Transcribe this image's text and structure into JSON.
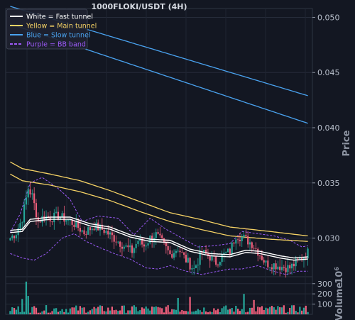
{
  "chart_data": {
    "type": "candlestick",
    "title": "1000FLOKI/USDT (4H)",
    "price_axis": {
      "label": "Price",
      "ylim": [
        0.0265,
        0.0508
      ],
      "ticks": [
        0.03,
        0.035,
        0.04,
        0.045,
        0.05
      ],
      "tick_labels": [
        "0.030",
        "0.035",
        "0.040",
        "0.045",
        "0.050"
      ],
      "grid": true
    },
    "volume_axis": {
      "label": "Volume",
      "unit_label": "10",
      "unit_exponent": "6",
      "ylim": [
        0,
        340
      ],
      "ticks": [
        100,
        200,
        300
      ],
      "tick_labels": [
        "100",
        "200",
        "300"
      ]
    },
    "legend": {
      "placement": "top-left",
      "entries": [
        {
          "label": "White = Fast tunnel",
          "color": "#ffffff",
          "style": "solid"
        },
        {
          "label": "Yellow = Main tunnel",
          "color": "#f6d365",
          "style": "solid"
        },
        {
          "label": "Blue = Slow tunnel",
          "color": "#4aa3f0",
          "style": "solid"
        },
        {
          "label": "Purple = BB band",
          "color": "#9b59f6",
          "style": "dashed"
        }
      ]
    },
    "colors": {
      "up": "#26a69a",
      "down": "#ef5f7c",
      "fast": "#ffffff",
      "main": "#f6d365",
      "slow": "#4aa3f0",
      "bb": "#9b59f6"
    },
    "n_bars": 150,
    "anchors": [
      [
        0,
        0.03
      ],
      [
        3,
        0.0305
      ],
      [
        6,
        0.0318
      ],
      [
        9,
        0.0345
      ],
      [
        11,
        0.0338
      ],
      [
        14,
        0.0315
      ],
      [
        17,
        0.032
      ],
      [
        20,
        0.0318
      ],
      [
        24,
        0.032
      ],
      [
        28,
        0.0317
      ],
      [
        32,
        0.0313
      ],
      [
        37,
        0.0305
      ],
      [
        42,
        0.0311
      ],
      [
        47,
        0.0307
      ],
      [
        52,
        0.03
      ],
      [
        57,
        0.0293
      ],
      [
        61,
        0.0288
      ],
      [
        64,
        0.0298
      ],
      [
        67,
        0.0293
      ],
      [
        70,
        0.03
      ],
      [
        73,
        0.0303
      ],
      [
        76,
        0.0296
      ],
      [
        80,
        0.0285
      ],
      [
        84,
        0.0291
      ],
      [
        88,
        0.028
      ],
      [
        92,
        0.0272
      ],
      [
        96,
        0.0287
      ],
      [
        100,
        0.0283
      ],
      [
        103,
        0.0278
      ],
      [
        107,
        0.0285
      ],
      [
        110,
        0.0288
      ],
      [
        113,
        0.0303
      ],
      [
        117,
        0.03
      ],
      [
        121,
        0.0295
      ],
      [
        124,
        0.0288
      ],
      [
        128,
        0.0277
      ],
      [
        132,
        0.0276
      ],
      [
        136,
        0.0274
      ],
      [
        140,
        0.0273
      ],
      [
        144,
        0.0279
      ],
      [
        149,
        0.0287
      ]
    ],
    "volume_spikes": [
      [
        8,
        320
      ],
      [
        9,
        180
      ],
      [
        6,
        150
      ],
      [
        84,
        160
      ],
      [
        90,
        170
      ],
      [
        117,
        200
      ],
      [
        122,
        140
      ]
    ],
    "slow_upper": [
      [
        0,
        0.051
      ],
      [
        149,
        0.0429
      ]
    ],
    "slow_lower": [
      [
        0,
        0.0494
      ],
      [
        149,
        0.0404
      ]
    ],
    "main_upper": [
      [
        0,
        0.0369
      ],
      [
        6,
        0.0363
      ],
      [
        20,
        0.0358
      ],
      [
        35,
        0.0352
      ],
      [
        50,
        0.0343
      ],
      [
        65,
        0.0333
      ],
      [
        80,
        0.0323
      ],
      [
        95,
        0.0317
      ],
      [
        110,
        0.031
      ],
      [
        130,
        0.0306
      ],
      [
        149,
        0.0302
      ]
    ],
    "main_lower": [
      [
        0,
        0.0358
      ],
      [
        6,
        0.0352
      ],
      [
        20,
        0.0348
      ],
      [
        35,
        0.0342
      ],
      [
        50,
        0.0334
      ],
      [
        65,
        0.0324
      ],
      [
        80,
        0.0315
      ],
      [
        95,
        0.0308
      ],
      [
        110,
        0.0302
      ],
      [
        130,
        0.0299
      ],
      [
        149,
        0.0297
      ]
    ],
    "fast_upper": [
      [
        0,
        0.0307
      ],
      [
        6,
        0.0308
      ],
      [
        10,
        0.0317
      ],
      [
        20,
        0.0319
      ],
      [
        30,
        0.0319
      ],
      [
        40,
        0.0313
      ],
      [
        50,
        0.031
      ],
      [
        60,
        0.0303
      ],
      [
        70,
        0.0299
      ],
      [
        80,
        0.0298
      ],
      [
        90,
        0.029
      ],
      [
        100,
        0.0286
      ],
      [
        110,
        0.0285
      ],
      [
        118,
        0.0289
      ],
      [
        125,
        0.0288
      ],
      [
        135,
        0.0284
      ],
      [
        142,
        0.0282
      ],
      [
        149,
        0.0283
      ]
    ],
    "fast_lower": [
      [
        0,
        0.0305
      ],
      [
        6,
        0.0306
      ],
      [
        10,
        0.0315
      ],
      [
        20,
        0.0317
      ],
      [
        30,
        0.0317
      ],
      [
        40,
        0.0311
      ],
      [
        50,
        0.0308
      ],
      [
        60,
        0.0301
      ],
      [
        70,
        0.0297
      ],
      [
        80,
        0.0296
      ],
      [
        90,
        0.0288
      ],
      [
        100,
        0.0284
      ],
      [
        110,
        0.0283
      ],
      [
        118,
        0.0287
      ],
      [
        125,
        0.0286
      ],
      [
        135,
        0.0282
      ],
      [
        142,
        0.028
      ],
      [
        149,
        0.0281
      ]
    ],
    "bb_upper": [
      [
        0,
        0.0305
      ],
      [
        5,
        0.0322
      ],
      [
        10,
        0.035
      ],
      [
        16,
        0.0355
      ],
      [
        24,
        0.0345
      ],
      [
        30,
        0.0335
      ],
      [
        36,
        0.0315
      ],
      [
        44,
        0.032
      ],
      [
        54,
        0.0318
      ],
      [
        62,
        0.0303
      ],
      [
        70,
        0.0318
      ],
      [
        78,
        0.0308
      ],
      [
        86,
        0.03
      ],
      [
        94,
        0.0292
      ],
      [
        102,
        0.0293
      ],
      [
        110,
        0.0295
      ],
      [
        116,
        0.0306
      ],
      [
        124,
        0.0304
      ],
      [
        132,
        0.0302
      ],
      [
        140,
        0.0298
      ],
      [
        146,
        0.0292
      ],
      [
        149,
        0.0293
      ]
    ],
    "bb_lower": [
      [
        0,
        0.0286
      ],
      [
        6,
        0.0282
      ],
      [
        12,
        0.028
      ],
      [
        18,
        0.0286
      ],
      [
        26,
        0.03
      ],
      [
        32,
        0.0304
      ],
      [
        38,
        0.0297
      ],
      [
        44,
        0.0292
      ],
      [
        52,
        0.0286
      ],
      [
        60,
        0.0281
      ],
      [
        68,
        0.0273
      ],
      [
        74,
        0.0272
      ],
      [
        80,
        0.0275
      ],
      [
        88,
        0.027
      ],
      [
        96,
        0.0267
      ],
      [
        104,
        0.027
      ],
      [
        110,
        0.0272
      ],
      [
        116,
        0.0272
      ],
      [
        124,
        0.0275
      ],
      [
        130,
        0.0271
      ],
      [
        138,
        0.0267
      ],
      [
        144,
        0.027
      ],
      [
        149,
        0.027
      ]
    ]
  }
}
